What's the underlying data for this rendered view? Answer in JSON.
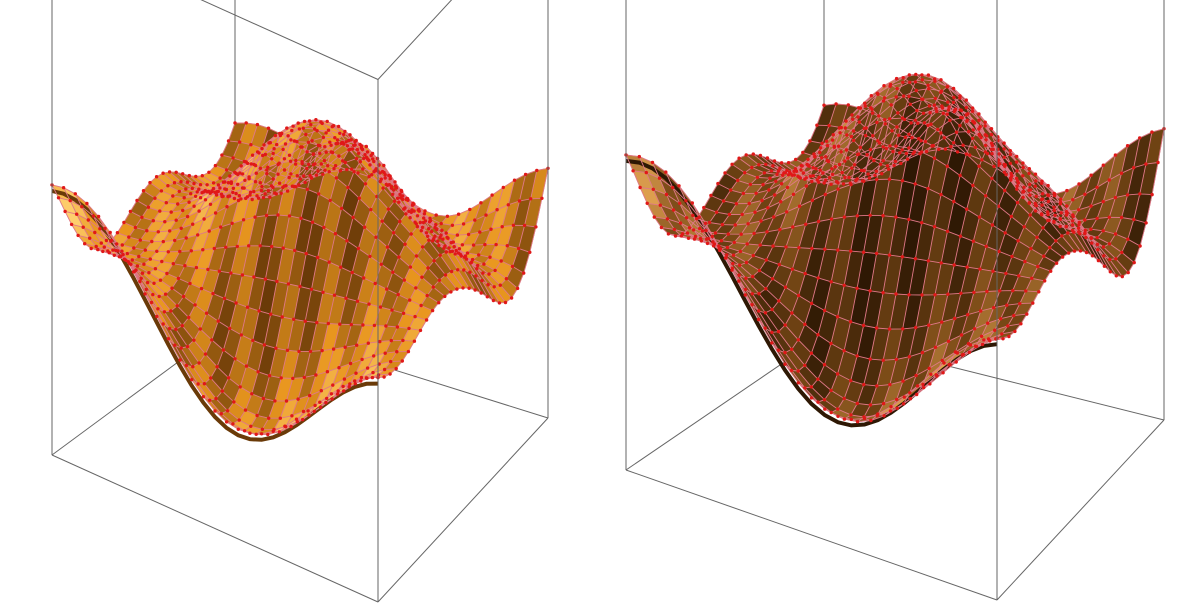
{
  "figure": {
    "panels": [
      {
        "id": "left",
        "surface_style": "bright-gold",
        "base_color": "#e8961e",
        "highlight_color": "#ffd070",
        "shadow_color": "#6a3a08"
      },
      {
        "id": "right",
        "surface_style": "dark-bronze",
        "base_color": "#7a4a16",
        "highlight_color": "#e0a050",
        "shadow_color": "#2e1804"
      }
    ],
    "mesh_color": "#e07888",
    "control_point_color": "#e01818",
    "box_color": "#666666",
    "grid": {
      "nu": 28,
      "nv": 28
    }
  }
}
